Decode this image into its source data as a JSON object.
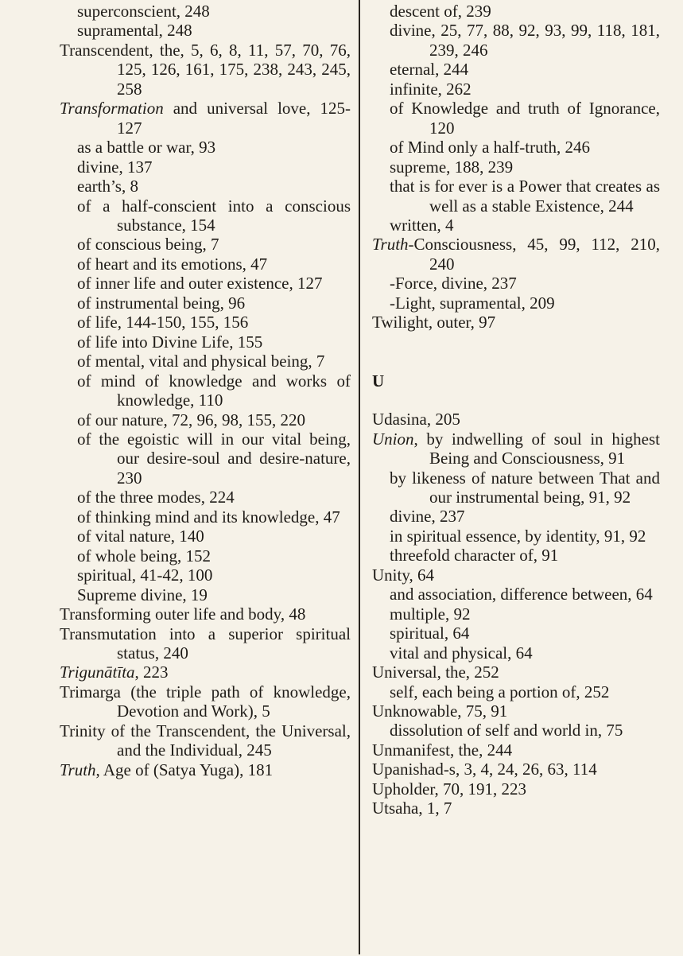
{
  "left_column": [
    {
      "level": "sub",
      "text": "superconscient, 248"
    },
    {
      "level": "sub",
      "text": "supramental, 248"
    },
    {
      "level": "main",
      "text": "Transcendent, the, 5, 6, 8, 11, 57, 70, 76, 125, 126, 161, 175, 238, 243, 245, 258"
    },
    {
      "level": "main",
      "italic": "Transformation",
      "text": " and universal love, 125-127"
    },
    {
      "level": "sub",
      "text": "as a battle or war, 93"
    },
    {
      "level": "sub",
      "text": "divine, 137"
    },
    {
      "level": "sub",
      "text": "earth’s, 8"
    },
    {
      "level": "sub",
      "text": "of a half-conscient into a conscious substance, 154"
    },
    {
      "level": "sub",
      "text": "of conscious being, 7"
    },
    {
      "level": "sub",
      "text": "of heart and its emotions, 47"
    },
    {
      "level": "sub",
      "text": "of inner life and outer existence, 127"
    },
    {
      "level": "sub",
      "text": "of instrumental being, 96"
    },
    {
      "level": "sub",
      "text": "of life, 144-150, 155, 156"
    },
    {
      "level": "sub",
      "text": "of life into Divine Life, 155"
    },
    {
      "level": "sub",
      "text": "of mental, vital and physical being, 7"
    },
    {
      "level": "sub",
      "text": "of mind of knowledge and works of knowledge, 110"
    },
    {
      "level": "sub",
      "text": "of our nature, 72, 96, 98, 155, 220"
    },
    {
      "level": "sub",
      "text": "of the egoistic will in our vital being, our desire-soul and desire-nature, 230"
    },
    {
      "level": "sub",
      "text": "of the three modes, 224"
    },
    {
      "level": "sub",
      "text": "of thinking mind and its knowledge, 47"
    },
    {
      "level": "sub",
      "text": "of vital nature, 140"
    },
    {
      "level": "sub",
      "text": "of whole being, 152"
    },
    {
      "level": "sub",
      "text": "spiritual, 41-42, 100"
    },
    {
      "level": "sub",
      "text": "Supreme divine, 19"
    },
    {
      "level": "main",
      "text": "Transforming outer life and body, 48"
    },
    {
      "level": "main",
      "text": "Transmutation into a superior spiritual status, 240"
    },
    {
      "level": "main",
      "italic": "Trigunātīta",
      "text": ", 223"
    },
    {
      "level": "main",
      "text": "Trimarga (the triple path of knowledge, Devotion and Work), 5"
    },
    {
      "level": "main",
      "text": "Trinity of the Transcendent, the Universal, and the Individual, 245"
    },
    {
      "level": "main",
      "italic": "Truth",
      "text": ", Age of (Satya Yuga), 181"
    }
  ],
  "right_column_top": [
    {
      "level": "sub",
      "text": "descent of, 239"
    },
    {
      "level": "sub",
      "text": "divine, 25, 77, 88, 92, 93, 99, 118, 181, 239, 246"
    },
    {
      "level": "sub",
      "text": "eternal, 244"
    },
    {
      "level": "sub",
      "text": "infinite, 262"
    },
    {
      "level": "sub",
      "text": "of Knowledge and truth of Ignorance, 120"
    },
    {
      "level": "sub",
      "text": "of Mind only a half-truth, 246"
    },
    {
      "level": "sub",
      "text": "supreme, 188, 239"
    },
    {
      "level": "sub",
      "text": "that is for ever is a Power that creates as well as a stable Existence, 244"
    },
    {
      "level": "sub",
      "text": "written, 4"
    },
    {
      "level": "main",
      "italic": "Truth",
      "text": "-Consciousness, 45, 99, 112, 210, 240"
    },
    {
      "level": "sub",
      "text": "-Force, divine, 237"
    },
    {
      "level": "sub",
      "text": "-Light, supramental, 209"
    },
    {
      "level": "main",
      "text": "Twilight, outer, 97"
    }
  ],
  "section_letter": "U",
  "right_column_bottom": [
    {
      "level": "main",
      "text": "Udasina, 205"
    },
    {
      "level": "main",
      "italic": "Union",
      "text": ", by indwelling of soul in highest Being and Consciousness, 91"
    },
    {
      "level": "sub",
      "text": "by likeness of nature between That and our instrumental being, 91, 92"
    },
    {
      "level": "sub",
      "text": "divine, 237"
    },
    {
      "level": "sub",
      "text": "in spiritual essence, by identity, 91, 92"
    },
    {
      "level": "sub",
      "text": "threefold character of, 91"
    },
    {
      "level": "main",
      "text": "Unity, 64"
    },
    {
      "level": "sub",
      "text": "and association, difference between, 64"
    },
    {
      "level": "sub",
      "text": "multiple, 92"
    },
    {
      "level": "sub",
      "text": "spiritual, 64"
    },
    {
      "level": "sub",
      "text": "vital and physical, 64"
    },
    {
      "level": "main",
      "text": "Universal, the, 252"
    },
    {
      "level": "sub",
      "text": "self, each being a portion of, 252"
    },
    {
      "level": "main",
      "text": "Unknowable, 75, 91"
    },
    {
      "level": "sub",
      "text": "dissolution of self and world in, 75"
    },
    {
      "level": "main",
      "text": "Unmanifest, the, 244"
    },
    {
      "level": "main",
      "text": "Upanishad-s, 3, 4, 24, 26, 63, 114"
    },
    {
      "level": "main",
      "text": "Upholder, 70, 191, 223"
    },
    {
      "level": "main",
      "text": "Utsaha, 1, 7"
    }
  ]
}
